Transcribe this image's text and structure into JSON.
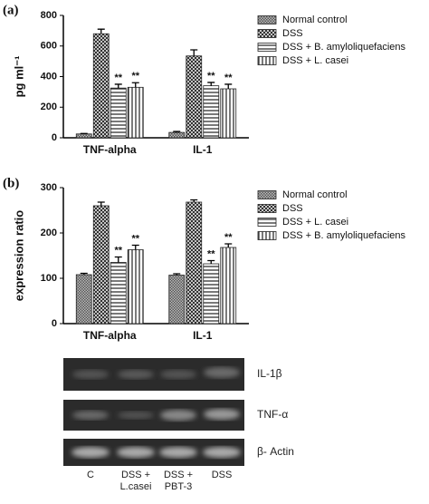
{
  "chart_data": [
    {
      "type": "bar",
      "panel": "(a)",
      "ylabel": "pg ml⁻¹",
      "categories": [
        "TNF-alpha",
        "IL-1"
      ],
      "ylim": [
        0,
        800
      ],
      "yticks": [
        0,
        200,
        400,
        600,
        800
      ],
      "grid": false,
      "legend": "top-right",
      "series": [
        {
          "name": "Normal control",
          "color": "#555555",
          "hatch": "checker",
          "values": [
            25,
            35
          ],
          "errors": [
            3,
            6
          ]
        },
        {
          "name": "DSS",
          "color": "#222222",
          "hatch": "cross",
          "values": [
            680,
            535
          ],
          "errors": [
            30,
            40
          ]
        },
        {
          "name": "DSS + B. amyloliquefaciens",
          "color": "#333333",
          "hatch": "horizontal",
          "values": [
            325,
            340
          ],
          "errors": [
            25,
            22
          ],
          "significance": [
            "**",
            "**"
          ]
        },
        {
          "name": "DSS + L. casei",
          "color": "#333333",
          "hatch": "vertical",
          "values": [
            330,
            320
          ],
          "errors": [
            30,
            30
          ],
          "significance": [
            "**",
            "**"
          ]
        }
      ]
    },
    {
      "type": "bar",
      "panel": "(b)",
      "ylabel": "expression ratio",
      "categories": [
        "TNF-alpha",
        "IL-1"
      ],
      "ylim": [
        0,
        300
      ],
      "yticks": [
        0,
        100,
        200,
        300
      ],
      "grid": false,
      "legend": "top-right",
      "series": [
        {
          "name": "Normal control",
          "color": "#555555",
          "hatch": "checker",
          "values": [
            108,
            107
          ],
          "errors": [
            3,
            3
          ]
        },
        {
          "name": "DSS",
          "color": "#222222",
          "hatch": "cross",
          "values": [
            260,
            268
          ],
          "errors": [
            8,
            5
          ]
        },
        {
          "name": "DSS + L. casei",
          "color": "#333333",
          "hatch": "horizontal",
          "values": [
            135,
            132
          ],
          "errors": [
            12,
            7
          ],
          "significance": [
            "**",
            "**"
          ]
        },
        {
          "name": "DSS + B. amyloliquefaciens",
          "color": "#333333",
          "hatch": "vertical",
          "values": [
            163,
            168
          ],
          "errors": [
            10,
            8
          ],
          "significance": [
            "**",
            "**"
          ]
        }
      ]
    }
  ],
  "gel": {
    "rows": [
      "IL-1β",
      "TNF-α",
      "β- Actin"
    ],
    "lanes": [
      "C",
      "DSS +\nL.casei",
      "DSS +\nPBT-3",
      "DSS"
    ]
  }
}
